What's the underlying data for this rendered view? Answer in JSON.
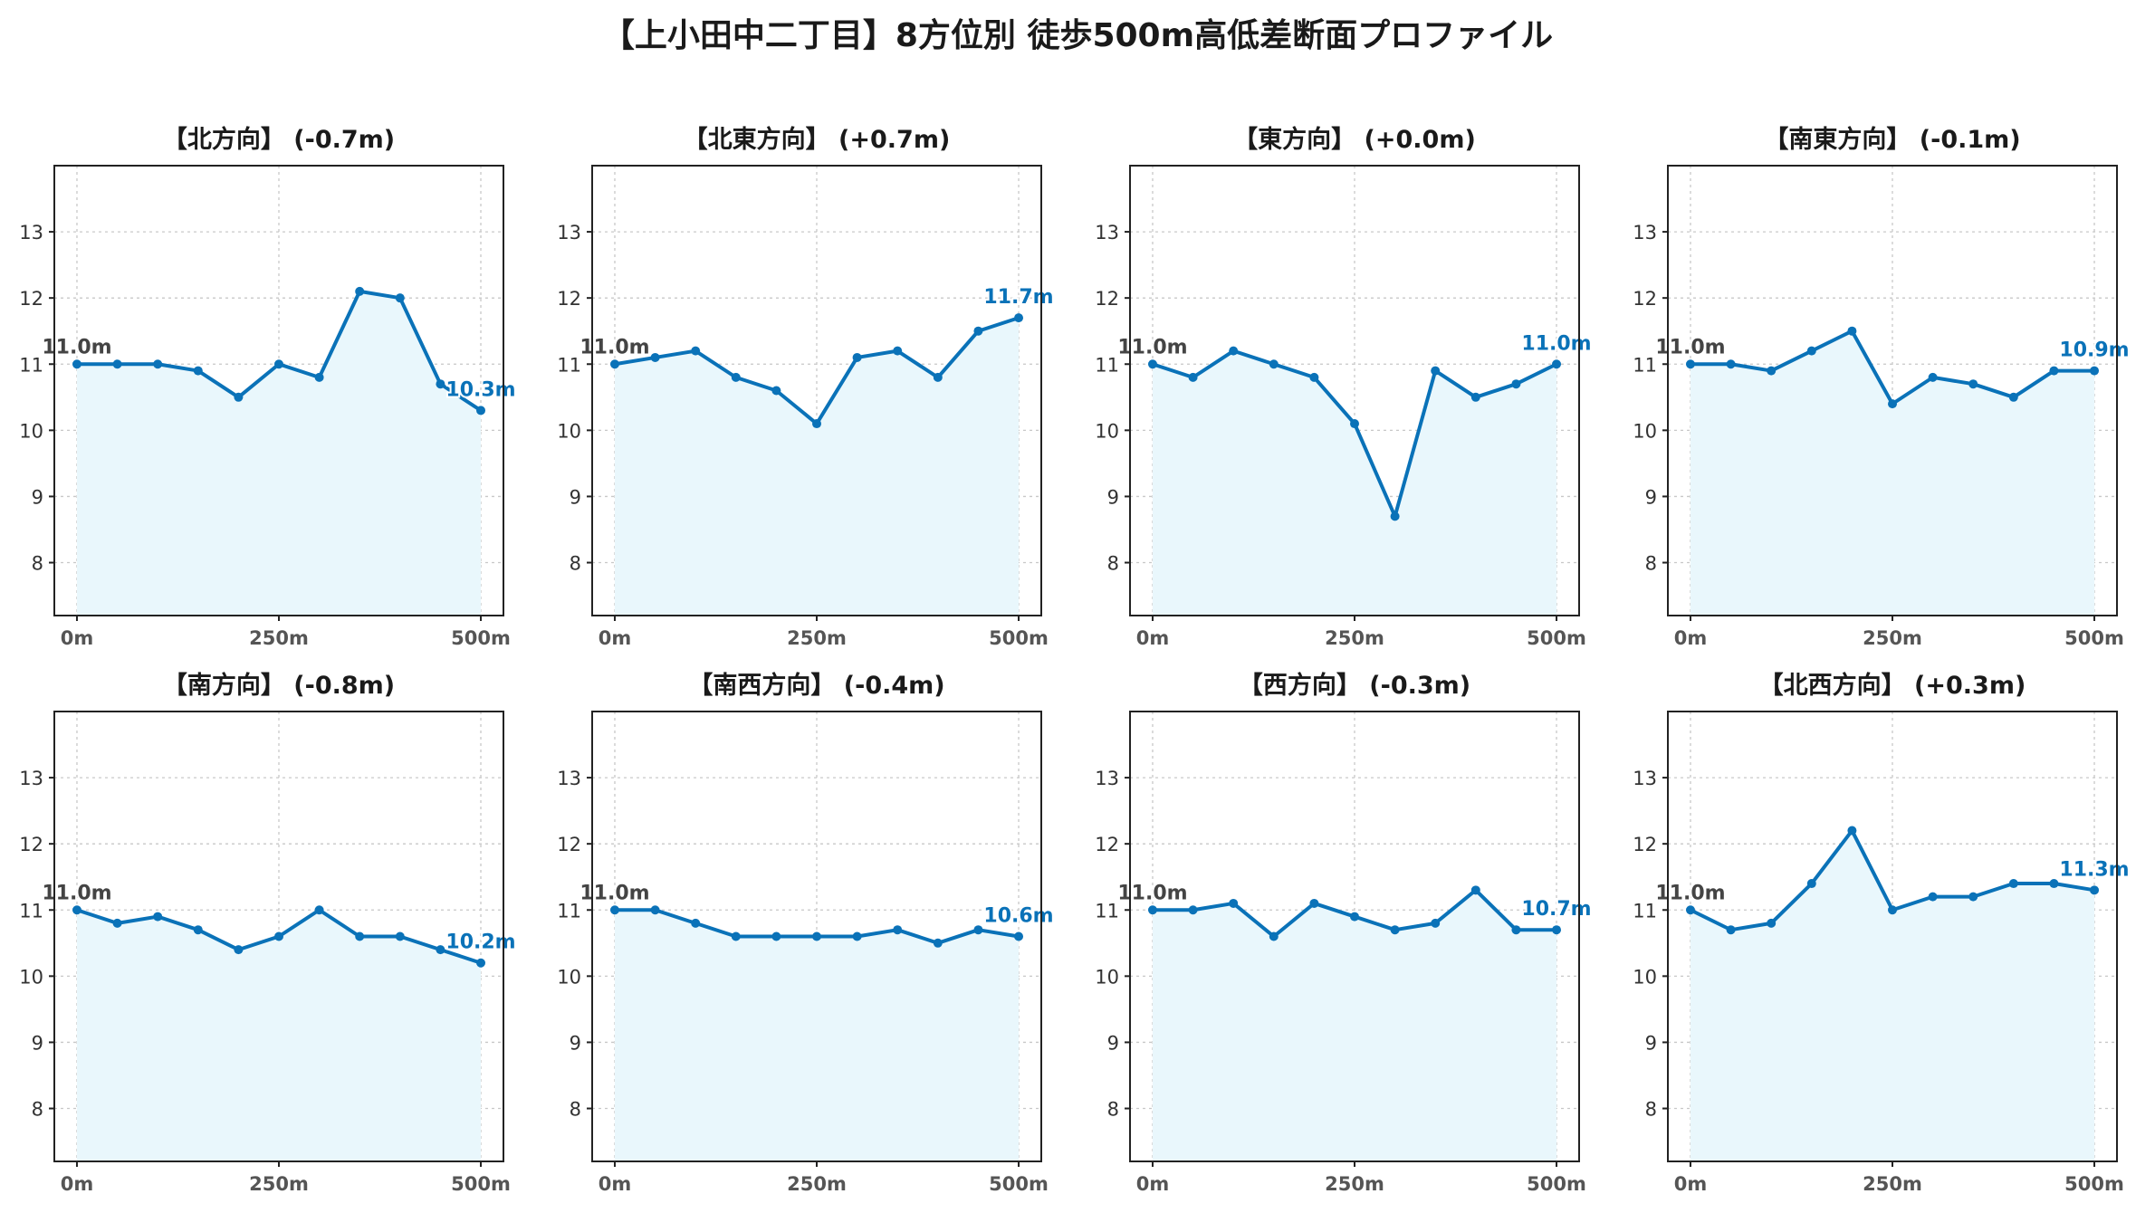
{
  "suptitle": "【上小田中二丁目】8方位別 徒歩500m高低差断面プロファイル",
  "colors": {
    "line": "#0a72b8",
    "fill": "#e9f7fc",
    "start_label": "#444444",
    "end_label": "#0a72b8",
    "grid": "#c8c8c8"
  },
  "chart_data": [
    {
      "type": "line",
      "title": "【北方向】 (-0.7m)",
      "x": [
        0,
        50,
        100,
        150,
        200,
        250,
        300,
        350,
        400,
        450,
        500
      ],
      "values": [
        11.0,
        11.0,
        11.0,
        10.9,
        10.5,
        11.0,
        10.8,
        12.1,
        12.0,
        10.7,
        10.3
      ],
      "start_label": "11.0m",
      "end_label": "10.3m",
      "xticks": [
        "0m",
        "250m",
        "500m"
      ],
      "yticks": [
        8,
        9,
        10,
        11,
        12,
        13
      ],
      "ylim": [
        7.2,
        14.0
      ],
      "grid": true
    },
    {
      "type": "line",
      "title": "【北東方向】 (+0.7m)",
      "x": [
        0,
        50,
        100,
        150,
        200,
        250,
        300,
        350,
        400,
        450,
        500
      ],
      "values": [
        11.0,
        11.1,
        11.2,
        10.8,
        10.6,
        10.1,
        11.1,
        11.2,
        10.8,
        11.5,
        11.7
      ],
      "start_label": "11.0m",
      "end_label": "11.7m",
      "xticks": [
        "0m",
        "250m",
        "500m"
      ],
      "yticks": [
        8,
        9,
        10,
        11,
        12,
        13
      ],
      "ylim": [
        7.2,
        14.0
      ],
      "grid": true
    },
    {
      "type": "line",
      "title": "【東方向】 (+0.0m)",
      "x": [
        0,
        50,
        100,
        150,
        200,
        250,
        300,
        350,
        400,
        450,
        500
      ],
      "values": [
        11.0,
        10.8,
        11.2,
        11.0,
        10.8,
        10.1,
        8.7,
        10.9,
        10.5,
        10.7,
        11.0
      ],
      "start_label": "11.0m",
      "end_label": "11.0m",
      "xticks": [
        "0m",
        "250m",
        "500m"
      ],
      "yticks": [
        8,
        9,
        10,
        11,
        12,
        13
      ],
      "ylim": [
        7.2,
        14.0
      ],
      "grid": true
    },
    {
      "type": "line",
      "title": "【南東方向】 (-0.1m)",
      "x": [
        0,
        50,
        100,
        150,
        200,
        250,
        300,
        350,
        400,
        450,
        500
      ],
      "values": [
        11.0,
        11.0,
        10.9,
        11.2,
        11.5,
        10.4,
        10.8,
        10.7,
        10.5,
        10.9,
        10.9
      ],
      "start_label": "11.0m",
      "end_label": "10.9m",
      "xticks": [
        "0m",
        "250m",
        "500m"
      ],
      "yticks": [
        8,
        9,
        10,
        11,
        12,
        13
      ],
      "ylim": [
        7.2,
        14.0
      ],
      "grid": true
    },
    {
      "type": "line",
      "title": "【南方向】 (-0.8m)",
      "x": [
        0,
        50,
        100,
        150,
        200,
        250,
        300,
        350,
        400,
        450,
        500
      ],
      "values": [
        11.0,
        10.8,
        10.9,
        10.7,
        10.4,
        10.6,
        11.0,
        10.6,
        10.6,
        10.4,
        10.2
      ],
      "start_label": "11.0m",
      "end_label": "10.2m",
      "xticks": [
        "0m",
        "250m",
        "500m"
      ],
      "yticks": [
        8,
        9,
        10,
        11,
        12,
        13
      ],
      "ylim": [
        7.2,
        14.0
      ],
      "grid": true
    },
    {
      "type": "line",
      "title": "【南西方向】 (-0.4m)",
      "x": [
        0,
        50,
        100,
        150,
        200,
        250,
        300,
        350,
        400,
        450,
        500
      ],
      "values": [
        11.0,
        11.0,
        10.8,
        10.6,
        10.6,
        10.6,
        10.6,
        10.7,
        10.5,
        10.7,
        10.6
      ],
      "start_label": "11.0m",
      "end_label": "10.6m",
      "xticks": [
        "0m",
        "250m",
        "500m"
      ],
      "yticks": [
        8,
        9,
        10,
        11,
        12,
        13
      ],
      "ylim": [
        7.2,
        14.0
      ],
      "grid": true
    },
    {
      "type": "line",
      "title": "【西方向】 (-0.3m)",
      "x": [
        0,
        50,
        100,
        150,
        200,
        250,
        300,
        350,
        400,
        450,
        500
      ],
      "values": [
        11.0,
        11.0,
        11.1,
        10.6,
        11.1,
        10.9,
        10.7,
        10.8,
        11.3,
        10.7,
        10.7
      ],
      "start_label": "11.0m",
      "end_label": "10.7m",
      "xticks": [
        "0m",
        "250m",
        "500m"
      ],
      "yticks": [
        8,
        9,
        10,
        11,
        12,
        13
      ],
      "ylim": [
        7.2,
        14.0
      ],
      "grid": true
    },
    {
      "type": "line",
      "title": "【北西方向】 (+0.3m)",
      "x": [
        0,
        50,
        100,
        150,
        200,
        250,
        300,
        350,
        400,
        450,
        500
      ],
      "values": [
        11.0,
        10.7,
        10.8,
        11.4,
        12.2,
        11.0,
        11.2,
        11.2,
        11.4,
        11.4,
        11.3
      ],
      "start_label": "11.0m",
      "end_label": "11.3m",
      "xticks": [
        "0m",
        "250m",
        "500m"
      ],
      "yticks": [
        8,
        9,
        10,
        11,
        12,
        13
      ],
      "ylim": [
        7.2,
        14.0
      ],
      "grid": true
    }
  ]
}
